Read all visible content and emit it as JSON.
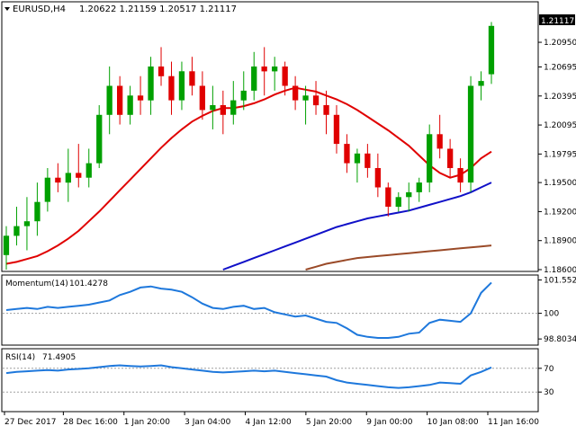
{
  "header": {
    "symbol": "EURUSD,H4",
    "ohlc": "1.20622 1.21159 1.20517 1.21117"
  },
  "colors": {
    "background": "#ffffff",
    "bull": "#00a000",
    "bear": "#e00000",
    "ma_fast": "#e00000",
    "ma_mid": "#1010c8",
    "ma_slow": "#9a4a28",
    "indicator": "#1e78dc",
    "axis": "#000000",
    "grid_ref": "#a0a0a0",
    "price_tag_bg": "#000000",
    "price_tag_fg": "#ffffff"
  },
  "icons": {
    "symbol_menu": "triangle-down-icon"
  },
  "chart_data": [
    {
      "type": "candlestick",
      "panel": "price",
      "ylim": [
        1.186,
        1.2135
      ],
      "yticks": [
        "1.20950",
        "1.20695",
        "1.20395",
        "1.20095",
        "1.19795",
        "1.19500",
        "1.19200",
        "1.18900",
        "1.18600"
      ],
      "current_price": "1.21117",
      "series": [
        {
          "name": "",
          "role": "ma_fast",
          "values": [
            1.1866,
            1.1868,
            1.1871,
            1.1874,
            1.1879,
            1.1885,
            1.1892,
            1.19,
            1.191,
            1.192,
            1.1931,
            1.1942,
            1.1953,
            1.1964,
            1.1975,
            1.1986,
            1.1996,
            1.2005,
            1.2013,
            1.2019,
            1.2024,
            1.2027,
            1.2027,
            1.2029,
            1.2032,
            1.2036,
            1.2041,
            1.2045,
            1.2048,
            1.2046,
            1.2044,
            1.204,
            1.2036,
            1.2031,
            1.2025,
            1.2018,
            1.2011,
            1.2004,
            1.1996,
            1.1988,
            1.1978,
            1.1968,
            1.196,
            1.1955,
            1.1958,
            1.1965,
            1.1975,
            1.1982
          ]
        },
        {
          "name": "",
          "role": "ma_mid",
          "values": [
            null,
            null,
            null,
            null,
            null,
            null,
            null,
            null,
            null,
            null,
            null,
            null,
            null,
            null,
            null,
            null,
            null,
            null,
            null,
            null,
            null,
            1.186,
            1.1864,
            1.1868,
            1.1872,
            1.1876,
            1.188,
            1.1884,
            1.1888,
            1.1892,
            1.1896,
            1.19,
            1.1904,
            1.1907,
            1.191,
            1.1913,
            1.1915,
            1.1917,
            1.1919,
            1.1921,
            1.1924,
            1.1927,
            1.193,
            1.1933,
            1.1936,
            1.194,
            1.1945,
            1.195
          ]
        },
        {
          "name": "",
          "role": "ma_slow",
          "values": [
            null,
            null,
            null,
            null,
            null,
            null,
            null,
            null,
            null,
            null,
            null,
            null,
            null,
            null,
            null,
            null,
            null,
            null,
            null,
            null,
            null,
            null,
            null,
            null,
            null,
            null,
            null,
            null,
            null,
            1.186,
            1.1863,
            1.1866,
            1.1868,
            1.187,
            1.1872,
            1.1873,
            1.1874,
            1.1875,
            1.1876,
            1.1877,
            1.1878,
            1.1879,
            1.188,
            1.1881,
            1.1882,
            1.1883,
            1.1884,
            1.1885
          ]
        }
      ],
      "candles": [
        [
          1.1875,
          1.1905,
          1.186,
          1.1895
        ],
        [
          1.1895,
          1.1925,
          1.1885,
          1.1905
        ],
        [
          1.1905,
          1.1935,
          1.188,
          1.191
        ],
        [
          1.191,
          1.195,
          1.1895,
          1.193
        ],
        [
          1.193,
          1.1965,
          1.192,
          1.1955
        ],
        [
          1.1955,
          1.197,
          1.194,
          1.195
        ],
        [
          1.195,
          1.1985,
          1.193,
          1.196
        ],
        [
          1.196,
          1.199,
          1.1945,
          1.1955
        ],
        [
          1.1955,
          1.1985,
          1.1945,
          1.197
        ],
        [
          1.197,
          1.203,
          1.1965,
          1.202
        ],
        [
          1.202,
          1.207,
          1.2,
          1.205
        ],
        [
          1.205,
          1.206,
          1.201,
          1.202
        ],
        [
          1.202,
          1.205,
          1.201,
          1.204
        ],
        [
          1.204,
          1.206,
          1.202,
          1.2035
        ],
        [
          1.2035,
          1.208,
          1.202,
          1.207
        ],
        [
          1.207,
          1.209,
          1.205,
          1.206
        ],
        [
          1.206,
          1.2075,
          1.202,
          1.2035
        ],
        [
          1.2035,
          1.2075,
          1.2025,
          1.2065
        ],
        [
          1.2065,
          1.208,
          1.204,
          1.205
        ],
        [
          1.205,
          1.2065,
          1.2015,
          1.2025
        ],
        [
          1.2025,
          1.205,
          1.2005,
          1.203
        ],
        [
          1.203,
          1.2045,
          1.2,
          1.202
        ],
        [
          1.202,
          1.2055,
          1.201,
          1.2035
        ],
        [
          1.2035,
          1.2065,
          1.2025,
          1.2045
        ],
        [
          1.2045,
          1.2085,
          1.2035,
          1.207
        ],
        [
          1.207,
          1.209,
          1.204,
          1.2065
        ],
        [
          1.2065,
          1.208,
          1.2045,
          1.207
        ],
        [
          1.207,
          1.2075,
          1.204,
          1.205
        ],
        [
          1.205,
          1.206,
          1.2025,
          1.2035
        ],
        [
          1.2035,
          1.205,
          1.201,
          1.204
        ],
        [
          1.204,
          1.2055,
          1.202,
          1.203
        ],
        [
          1.203,
          1.2045,
          1.2,
          1.202
        ],
        [
          1.202,
          1.203,
          1.198,
          1.199
        ],
        [
          1.199,
          1.2,
          1.196,
          1.197
        ],
        [
          1.197,
          1.1985,
          1.195,
          1.198
        ],
        [
          1.198,
          1.199,
          1.1955,
          1.1965
        ],
        [
          1.1965,
          1.198,
          1.1935,
          1.1945
        ],
        [
          1.1945,
          1.195,
          1.1915,
          1.1925
        ],
        [
          1.1925,
          1.194,
          1.192,
          1.1935
        ],
        [
          1.1935,
          1.195,
          1.192,
          1.194
        ],
        [
          1.194,
          1.1955,
          1.193,
          1.195
        ],
        [
          1.195,
          1.201,
          1.194,
          1.2
        ],
        [
          1.2,
          1.202,
          1.1975,
          1.1985
        ],
        [
          1.1985,
          1.1995,
          1.1955,
          1.1965
        ],
        [
          1.1965,
          1.1975,
          1.194,
          1.195
        ],
        [
          1.195,
          1.206,
          1.194,
          1.205
        ],
        [
          1.205,
          1.2065,
          1.2035,
          1.2055
        ],
        [
          1.2062,
          1.2116,
          1.2052,
          1.2112
        ]
      ]
    },
    {
      "type": "line",
      "panel": "momentum",
      "label": "Momentum(14)",
      "current_value": "101.4278",
      "ylim": [
        98.6,
        101.7
      ],
      "yticks": [
        "101.5528",
        "100",
        "98.8034"
      ],
      "ref_lines": [
        100
      ],
      "series": [
        {
          "name": "",
          "values": [
            100.15,
            100.2,
            100.25,
            100.2,
            100.3,
            100.25,
            100.3,
            100.35,
            100.4,
            100.5,
            100.6,
            100.85,
            101.0,
            101.2,
            101.25,
            101.15,
            101.1,
            101.0,
            100.75,
            100.45,
            100.25,
            100.2,
            100.3,
            100.35,
            100.2,
            100.25,
            100.05,
            99.95,
            99.85,
            99.9,
            99.75,
            99.6,
            99.55,
            99.3,
            99.0,
            98.9,
            98.85,
            98.85,
            98.9,
            99.05,
            99.1,
            99.55,
            99.7,
            99.65,
            99.6,
            100.0,
            100.95,
            101.43
          ]
        }
      ]
    },
    {
      "type": "line",
      "panel": "rsi",
      "label": "RSI(14)",
      "current_value": "71.4905",
      "ylim": [
        0,
        100
      ],
      "yticks": [
        "70",
        "30"
      ],
      "ref_lines": [
        70,
        30
      ],
      "series": [
        {
          "name": "",
          "values": [
            62,
            64,
            65,
            66,
            67,
            66,
            68,
            69,
            70,
            72,
            74,
            75,
            74,
            73,
            74,
            75,
            72,
            70,
            68,
            66,
            64,
            63,
            64,
            65,
            66,
            65,
            66,
            64,
            62,
            60,
            58,
            56,
            50,
            46,
            44,
            42,
            40,
            38,
            37,
            38,
            40,
            42,
            46,
            45,
            44,
            58,
            64,
            71.5
          ]
        }
      ]
    }
  ],
  "time_axis": {
    "labels": [
      "27 Dec 2017",
      "28 Dec 16:00",
      "1 Jan 20:00",
      "3 Jan 04:00",
      "4 Jan 12:00",
      "5 Jan 20:00",
      "9 Jan 00:00",
      "10 Jan 08:00",
      "11 Jan 16:00"
    ]
  }
}
